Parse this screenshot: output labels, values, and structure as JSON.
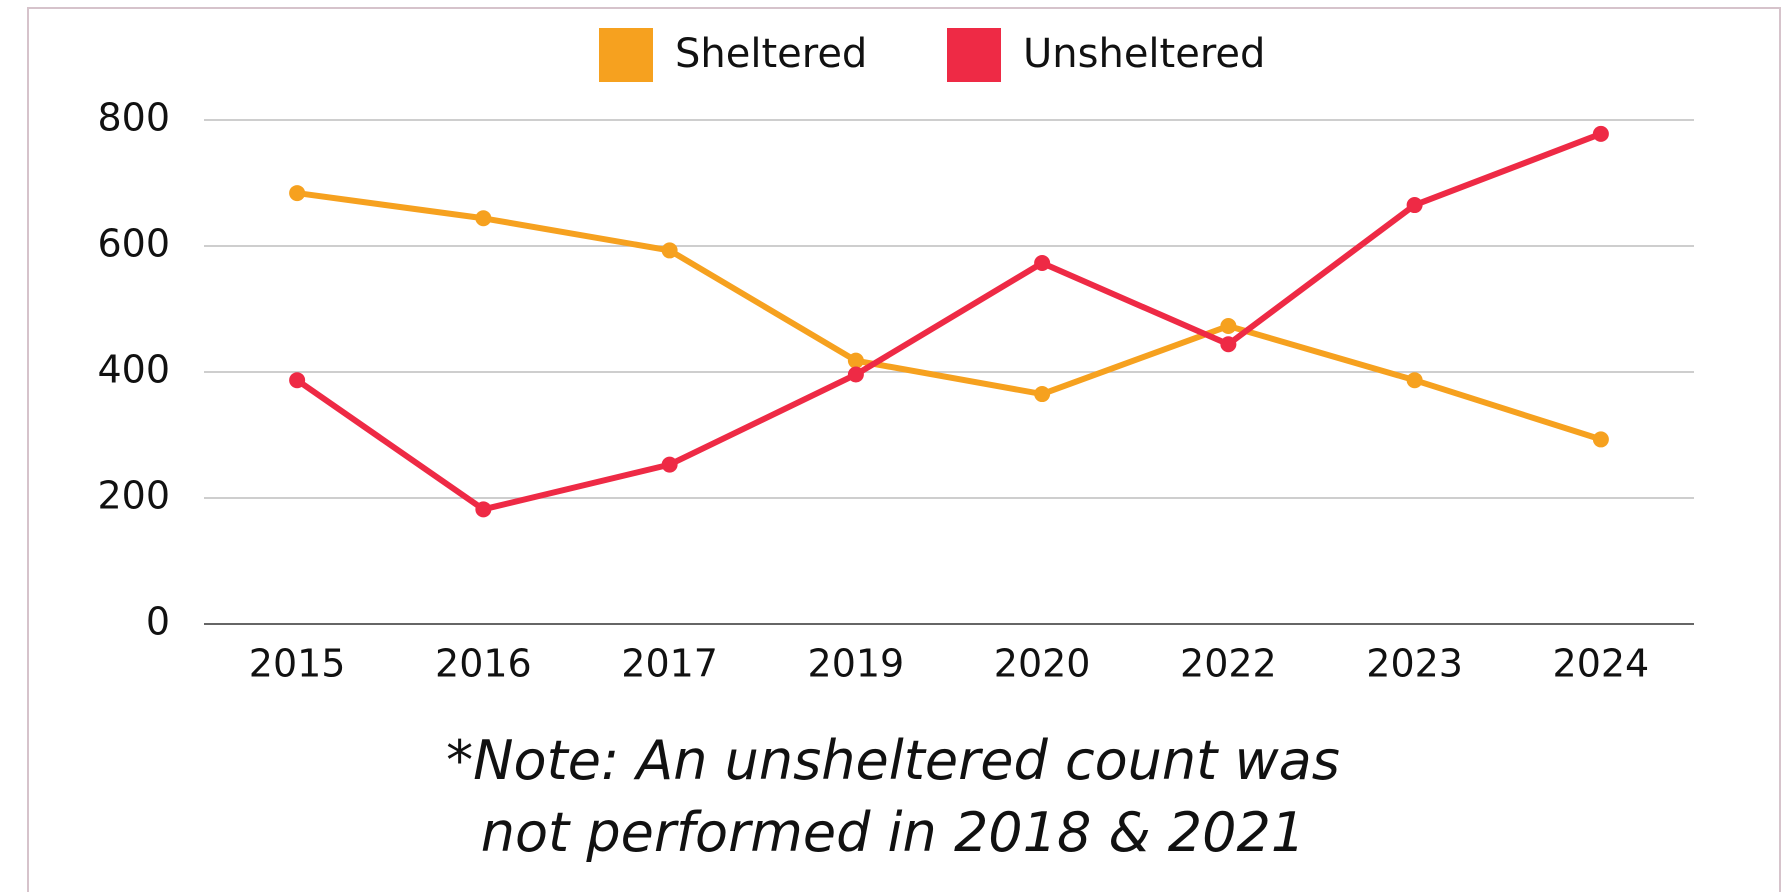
{
  "chart_data": {
    "type": "line",
    "categories": [
      "2015",
      "2016",
      "2017",
      "2019",
      "2020",
      "2022",
      "2023",
      "2024"
    ],
    "series": [
      {
        "name": "Sheltered",
        "color": "#f6a11f",
        "values": [
          684,
          644,
          593,
          418,
          365,
          473,
          387,
          293
        ]
      },
      {
        "name": "Unsheltered",
        "color": "#ee2a45",
        "values": [
          387,
          182,
          253,
          396,
          573,
          444,
          665,
          778
        ]
      }
    ],
    "ylim": [
      0,
      800
    ],
    "yticks": [
      0,
      200,
      400,
      600,
      800
    ],
    "grid": true,
    "legend": "top",
    "annotation": "*Note: An unsheltered count was not performed in 2018 & 2021"
  }
}
